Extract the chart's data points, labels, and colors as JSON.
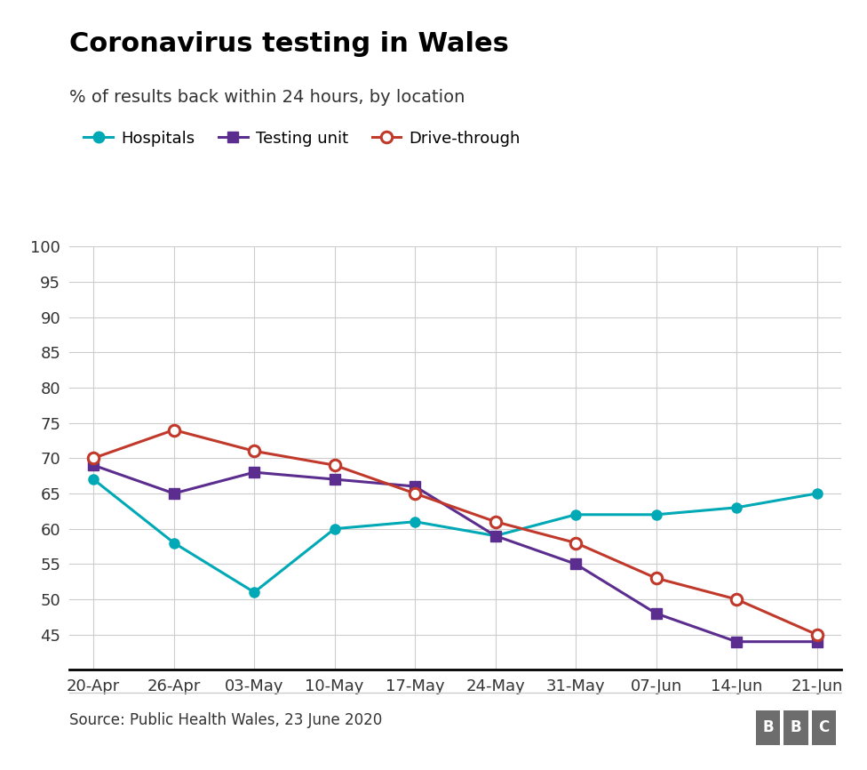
{
  "title": "Coronavirus testing in Wales",
  "subtitle": "% of results back within 24 hours, by location",
  "source": "Source: Public Health Wales, 23 June 2020",
  "x_labels": [
    "20-Apr",
    "26-Apr",
    "03-May",
    "10-May",
    "17-May",
    "24-May",
    "31-May",
    "07-Jun",
    "14-Jun",
    "21-Jun"
  ],
  "hospitals": [
    67,
    58,
    51,
    60,
    61,
    59,
    62,
    62,
    63,
    65
  ],
  "testing_unit": [
    69,
    65,
    68,
    67,
    66,
    59,
    55,
    48,
    44,
    44
  ],
  "drive_through": [
    70,
    74,
    71,
    69,
    65,
    61,
    58,
    53,
    50,
    45
  ],
  "hospitals_color": "#00a9b5",
  "testing_unit_color": "#5b2d8e",
  "drive_through_color": "#c0392b",
  "ylim": [
    40,
    100
  ],
  "yticks": [
    45,
    50,
    55,
    60,
    65,
    70,
    75,
    80,
    85,
    90,
    95,
    100
  ],
  "background_color": "#ffffff",
  "grid_color": "#cccccc",
  "title_fontsize": 22,
  "subtitle_fontsize": 14,
  "tick_fontsize": 13,
  "legend_fontsize": 13,
  "source_fontsize": 12,
  "bbc_color": "#6d6d6d"
}
